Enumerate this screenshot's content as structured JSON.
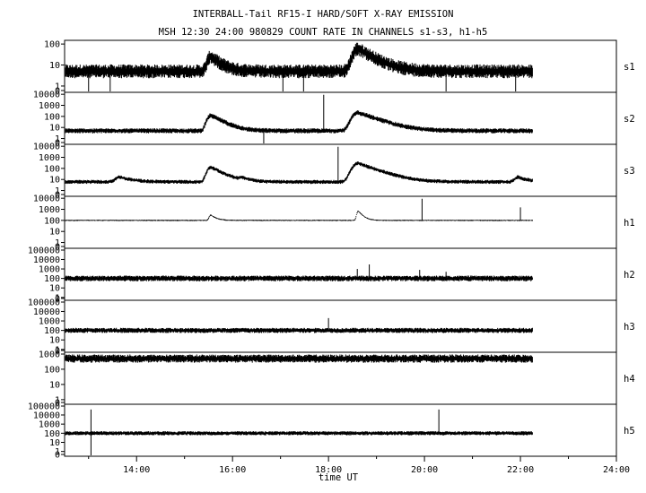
{
  "chart_data": {
    "type": "line",
    "title": "INTERBALL-Tail RF15-I HARD/SOFT X-RAY EMISSION",
    "subtitle": "MSH 12:30 24:00 980829  COUNT RATE IN CHANNELS s1-s3, h1-h5",
    "xlabel": "time UT",
    "xlim": [
      12.5,
      24.0
    ],
    "x_ticks": [
      "14:00",
      "16:00",
      "18:00",
      "20:00",
      "22:00",
      "24:00"
    ],
    "data_end": 22.25,
    "yscale": "log",
    "panels": [
      {
        "name": "s1",
        "ylim": [
          0.5,
          150
        ],
        "y_ticks": [
          "100",
          "10",
          "1",
          "0"
        ],
        "baseline": 5,
        "noise": 0.22,
        "peaks": [
          {
            "x": 15.55,
            "y": 25,
            "w": 0.12
          },
          {
            "x": 18.62,
            "y": 60,
            "w": 0.18
          }
        ],
        "spikes": [],
        "dips": [
          13.0,
          13.45,
          17.05,
          17.48,
          20.45,
          21.9
        ]
      },
      {
        "name": "s2",
        "ylim": [
          0.3,
          15000
        ],
        "y_ticks": [
          "10000",
          "1000",
          "100",
          "10",
          "1",
          "0"
        ],
        "baseline": 5,
        "noise": 0.15,
        "peaks": [
          {
            "x": 15.55,
            "y": 120,
            "w": 0.12
          },
          {
            "x": 18.62,
            "y": 220,
            "w": 0.18
          }
        ],
        "spikes": [
          {
            "x": 17.9,
            "y": 9000
          }
        ],
        "dips": [
          16.65
        ]
      },
      {
        "name": "s3",
        "ylim": [
          0.3,
          15000
        ],
        "y_ticks": [
          "10000",
          "1000",
          "100",
          "10",
          "1",
          "0"
        ],
        "baseline": 6,
        "noise": 0.12,
        "peaks": [
          {
            "x": 13.65,
            "y": 16,
            "w": 0.15
          },
          {
            "x": 15.55,
            "y": 130,
            "w": 0.12
          },
          {
            "x": 16.2,
            "y": 12,
            "w": 0.1
          },
          {
            "x": 18.62,
            "y": 280,
            "w": 0.18
          },
          {
            "x": 21.95,
            "y": 16,
            "w": 0.12
          }
        ],
        "spikes": [
          {
            "x": 18.2,
            "y": 9000
          }
        ],
        "dips": []
      },
      {
        "name": "h1",
        "ylim": [
          0.3,
          15000
        ],
        "y_ticks": [
          "10000",
          "1000",
          "100",
          "10",
          "1",
          "0"
        ],
        "baseline": 100,
        "noise": 0.04,
        "peaks": [
          {
            "x": 15.55,
            "y": 300,
            "w": 0.06
          },
          {
            "x": 18.62,
            "y": 700,
            "w": 0.05
          }
        ],
        "spikes": [
          {
            "x": 19.95,
            "y": 9000
          },
          {
            "x": 22.0,
            "y": 1500
          }
        ],
        "dips": []
      },
      {
        "name": "h2",
        "ylim": [
          0.5,
          150000
        ],
        "y_ticks": [
          "100000",
          "10000",
          "1000",
          "100",
          "10",
          "1",
          "0"
        ],
        "baseline": 100,
        "noise": 0.2,
        "peaks": [],
        "spikes": [
          {
            "x": 18.6,
            "y": 1000
          },
          {
            "x": 18.85,
            "y": 3000
          },
          {
            "x": 19.9,
            "y": 800
          },
          {
            "x": 20.45,
            "y": 500
          }
        ],
        "dips": []
      },
      {
        "name": "h3",
        "ylim": [
          0.5,
          150000
        ],
        "y_ticks": [
          "100000",
          "10000",
          "1000",
          "100",
          "10",
          "1",
          "0"
        ],
        "baseline": 100,
        "noise": 0.18,
        "peaks": [],
        "spikes": [
          {
            "x": 18.0,
            "y": 2000
          }
        ],
        "dips": []
      },
      {
        "name": "h4",
        "ylim": [
          0.5,
          1300
        ],
        "y_ticks": [
          "1000",
          "100",
          "10",
          "1",
          "0"
        ],
        "baseline": 500,
        "noise": 0.18,
        "peaks": [],
        "spikes": [],
        "dips": []
      },
      {
        "name": "h5",
        "ylim": [
          0.3,
          150000
        ],
        "y_ticks": [
          "100000",
          "10000",
          "1000",
          "100",
          "10",
          "1",
          "0"
        ],
        "baseline": 100,
        "noise": 0.15,
        "peaks": [],
        "spikes": [
          {
            "x": 13.05,
            "y": 40000
          },
          {
            "x": 20.3,
            "y": 40000
          }
        ],
        "dips": [
          13.05
        ]
      }
    ],
    "grid": false,
    "legend": "none"
  }
}
